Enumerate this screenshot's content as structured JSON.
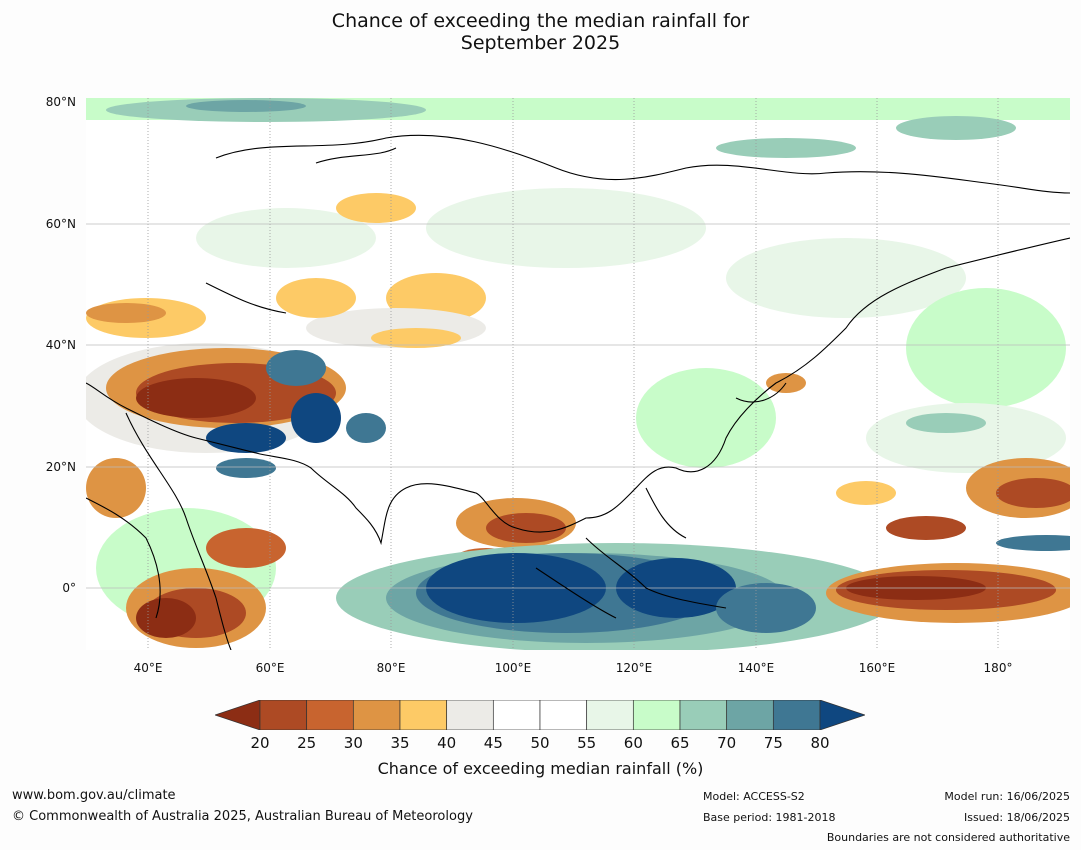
{
  "title_line1": "Chance of exceeding the median rainfall for",
  "title_line2": "September 2025",
  "lat_labels": [
    "80°N",
    "60°N",
    "40°N",
    "20°N",
    "0°"
  ],
  "lon_labels": [
    "40°E",
    "60°E",
    "80°E",
    "100°E",
    "120°E",
    "140°E",
    "160°E",
    "180°"
  ],
  "colorbar": {
    "colors": [
      "#8c2d14",
      "#ad4a24",
      "#c8642f",
      "#de9444",
      "#fdca66",
      "#ecebe7",
      "#ffffff",
      "#ffffff",
      "#e8f6e8",
      "#c8fcc9",
      "#99cdb8",
      "#6da5a5",
      "#3f7793",
      "#0f4780"
    ],
    "ticks": [
      "20",
      "25",
      "30",
      "35",
      "40",
      "45",
      "50",
      "55",
      "60",
      "65",
      "70",
      "75",
      "80"
    ],
    "label": "Chance of exceeding median rainfall (%)"
  },
  "footer": {
    "website": "www.bom.gov.au/climate",
    "copyright": "© Commonwealth of Australia 2025, Australian Bureau of Meteorology",
    "model": "Model: ACCESS-S2",
    "base_period": "Base period: 1981-2018",
    "model_run": "Model run: 16/06/2025",
    "issued": "Issued: 18/06/2025",
    "disclaimer": "Boundaries are not considered authoritative"
  }
}
